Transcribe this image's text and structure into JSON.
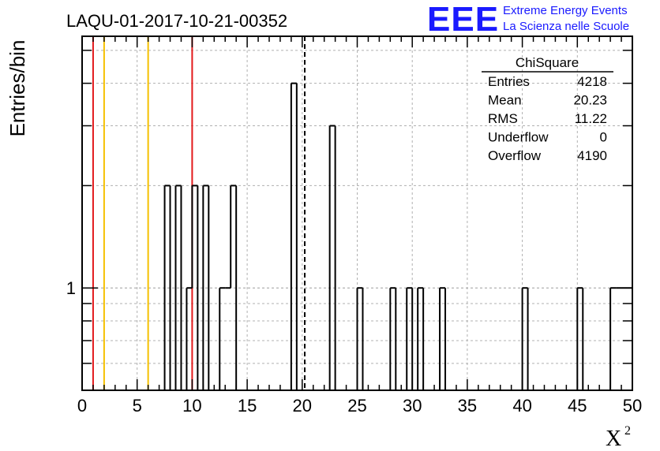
{
  "header": {
    "run_title": "LAQU-01-2017-10-21-00352",
    "logo_text": "EEE",
    "logo_line1": "Extreme Energy Events",
    "logo_line2": "La Scienza nelle Scuole"
  },
  "stats_box": {
    "title": "ChiSquare",
    "rows": [
      {
        "label": "Entries",
        "value": "4218"
      },
      {
        "label": "Mean",
        "value": "20.23"
      },
      {
        "label": "RMS",
        "value": "11.22"
      },
      {
        "label": "Underflow",
        "value": "0"
      },
      {
        "label": "Overflow",
        "value": "4190"
      }
    ]
  },
  "colors": {
    "red_line": "#e31a1c",
    "yellow_line": "#f5c000",
    "logo": "#1a1aff",
    "grid": "#b0b0b0"
  },
  "chart_data": {
    "type": "bar",
    "histogram": "step",
    "xlabel": "χ²",
    "xlabel_base": "X",
    "xlabel_sup": "2",
    "ylabel": "Entries/bin",
    "xlim": [
      0,
      50
    ],
    "y_scale": "log",
    "ylim": [
      0.5,
      5.5
    ],
    "x_ticks": [
      0,
      5,
      10,
      15,
      20,
      25,
      30,
      35,
      40,
      45,
      50
    ],
    "y_tick_labels": [
      {
        "value": 1,
        "label": "1"
      }
    ],
    "grid": true,
    "bin_width": 0.5,
    "bins": [
      {
        "x": 7.5,
        "count": 2
      },
      {
        "x": 8.5,
        "count": 2
      },
      {
        "x": 9.5,
        "count": 1
      },
      {
        "x": 10.0,
        "count": 2
      },
      {
        "x": 11.0,
        "count": 2
      },
      {
        "x": 12.5,
        "count": 1
      },
      {
        "x": 13.0,
        "count": 1
      },
      {
        "x": 13.5,
        "count": 2
      },
      {
        "x": 19.0,
        "count": 4
      },
      {
        "x": 22.5,
        "count": 3
      },
      {
        "x": 25.0,
        "count": 1
      },
      {
        "x": 28.0,
        "count": 1
      },
      {
        "x": 29.5,
        "count": 1
      },
      {
        "x": 30.5,
        "count": 1
      },
      {
        "x": 32.5,
        "count": 1
      },
      {
        "x": 40.0,
        "count": 1
      },
      {
        "x": 45.0,
        "count": 1
      },
      {
        "x": 48.0,
        "count": 1
      },
      {
        "x": 48.5,
        "count": 1
      },
      {
        "x": 49.0,
        "count": 1
      },
      {
        "x": 49.5,
        "count": 1
      }
    ],
    "vertical_lines": [
      {
        "x": 1,
        "color": "red"
      },
      {
        "x": 2,
        "color": "yellow"
      },
      {
        "x": 6,
        "color": "yellow"
      },
      {
        "x": 10,
        "color": "red"
      }
    ],
    "mean_line": {
      "x": 20.23,
      "style": "dashed"
    }
  }
}
